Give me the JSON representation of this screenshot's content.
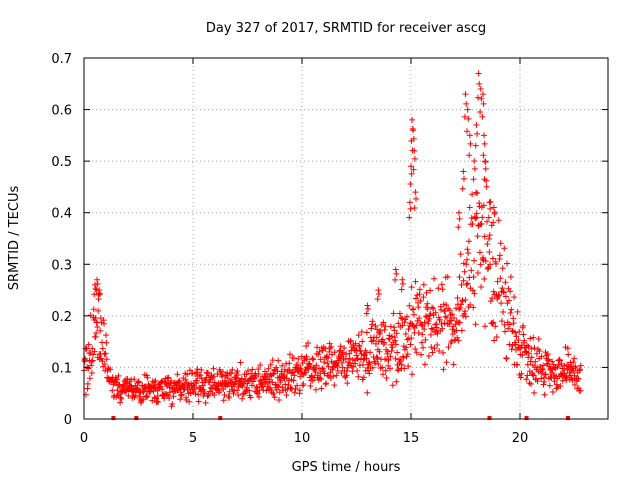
{
  "chart_data": {
    "type": "scatter",
    "title": "Day 327 of 2017, SRMTID for receiver ascg",
    "xlabel": "GPS time / hours",
    "ylabel": "SRMTID / TECUs",
    "xlim": [
      0,
      24
    ],
    "ylim": [
      0,
      0.7
    ],
    "grid": true,
    "marker": "+",
    "series_color": "#ff0000",
    "x_ticks": [
      0,
      5,
      10,
      15,
      20
    ],
    "x_tick_labels": [
      "0",
      "5",
      "10",
      "15",
      "20"
    ],
    "y_ticks": [
      0,
      0.1,
      0.2,
      0.3,
      0.4,
      0.5,
      0.6,
      0.7
    ],
    "y_tick_labels": [
      "0",
      "0.1",
      "0.2",
      "0.3",
      "0.4",
      "0.5",
      "0.6",
      "0.7"
    ],
    "trend": [
      {
        "x": 0.0,
        "y": 0.12
      },
      {
        "x": 0.3,
        "y": 0.13
      },
      {
        "x": 0.6,
        "y": 0.2
      },
      {
        "x": 0.9,
        "y": 0.14
      },
      {
        "x": 1.2,
        "y": 0.08
      },
      {
        "x": 1.6,
        "y": 0.06
      },
      {
        "x": 2.5,
        "y": 0.055
      },
      {
        "x": 4.0,
        "y": 0.06
      },
      {
        "x": 5.0,
        "y": 0.065
      },
      {
        "x": 6.0,
        "y": 0.07
      },
      {
        "x": 7.5,
        "y": 0.07
      },
      {
        "x": 9.0,
        "y": 0.08
      },
      {
        "x": 10.0,
        "y": 0.09
      },
      {
        "x": 11.0,
        "y": 0.1
      },
      {
        "x": 12.0,
        "y": 0.11
      },
      {
        "x": 13.0,
        "y": 0.13
      },
      {
        "x": 14.0,
        "y": 0.14
      },
      {
        "x": 14.8,
        "y": 0.16
      },
      {
        "x": 15.5,
        "y": 0.18
      },
      {
        "x": 16.0,
        "y": 0.19
      },
      {
        "x": 16.5,
        "y": 0.18
      },
      {
        "x": 17.0,
        "y": 0.2
      },
      {
        "x": 17.6,
        "y": 0.28
      },
      {
        "x": 18.0,
        "y": 0.35
      },
      {
        "x": 18.5,
        "y": 0.32
      },
      {
        "x": 19.0,
        "y": 0.27
      },
      {
        "x": 19.5,
        "y": 0.2
      },
      {
        "x": 20.0,
        "y": 0.14
      },
      {
        "x": 20.5,
        "y": 0.12
      },
      {
        "x": 21.0,
        "y": 0.1
      },
      {
        "x": 22.0,
        "y": 0.09
      },
      {
        "x": 22.8,
        "y": 0.08
      }
    ],
    "spikes": [
      {
        "x": 0.5,
        "y": 0.26
      },
      {
        "x": 0.6,
        "y": 0.27
      },
      {
        "x": 0.7,
        "y": 0.25
      },
      {
        "x": 13.0,
        "y": 0.22
      },
      {
        "x": 13.5,
        "y": 0.25
      },
      {
        "x": 14.3,
        "y": 0.29
      },
      {
        "x": 14.6,
        "y": 0.27
      },
      {
        "x": 14.95,
        "y": 0.42
      },
      {
        "x": 15.0,
        "y": 0.49
      },
      {
        "x": 15.05,
        "y": 0.58
      },
      {
        "x": 15.1,
        "y": 0.56
      },
      {
        "x": 15.15,
        "y": 0.52
      },
      {
        "x": 15.2,
        "y": 0.44
      },
      {
        "x": 17.2,
        "y": 0.4
      },
      {
        "x": 17.4,
        "y": 0.48
      },
      {
        "x": 17.5,
        "y": 0.63
      },
      {
        "x": 17.6,
        "y": 0.6
      },
      {
        "x": 17.7,
        "y": 0.55
      },
      {
        "x": 17.9,
        "y": 0.5
      },
      {
        "x": 18.0,
        "y": 0.57
      },
      {
        "x": 18.1,
        "y": 0.67
      },
      {
        "x": 18.2,
        "y": 0.64
      },
      {
        "x": 18.3,
        "y": 0.63
      },
      {
        "x": 18.35,
        "y": 0.55
      },
      {
        "x": 18.4,
        "y": 0.5
      },
      {
        "x": 18.6,
        "y": 0.42
      },
      {
        "x": 18.8,
        "y": 0.41
      }
    ],
    "zero_markers": [
      1.35,
      2.4,
      6.25,
      18.6,
      20.3,
      22.2
    ]
  }
}
